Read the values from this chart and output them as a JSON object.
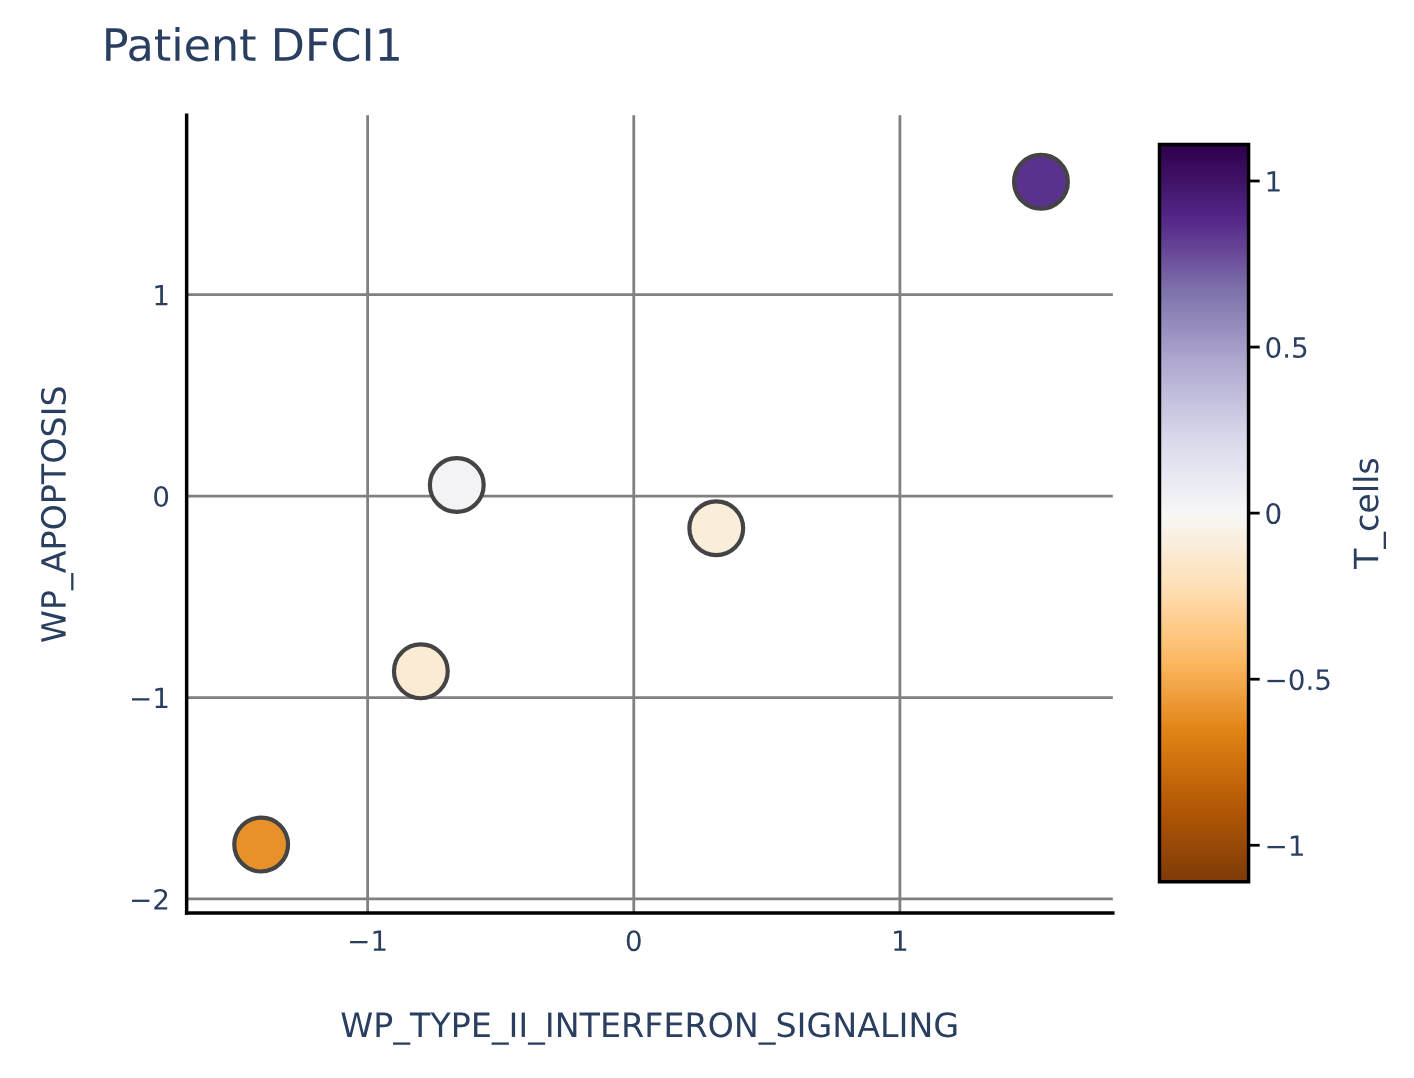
{
  "chart_data": {
    "type": "scatter",
    "title": "Patient DFCI1",
    "xlabel": "WP_TYPE_II_INTERFERON_SIGNALING",
    "ylabel": "WP_APOPTOSIS",
    "clabel": "T_cells",
    "x": [
      1.53,
      -0.665,
      0.31,
      -0.8,
      -1.4
    ],
    "values": [
      1.56,
      0.055,
      -0.16,
      -0.87,
      -1.73
    ],
    "cvalues": [
      0.85,
      0.03,
      -0.1,
      -0.12,
      -0.6
    ],
    "clim": [
      -1.11,
      1.11
    ],
    "cticks": [
      {
        "value": -1,
        "label": "−1"
      },
      {
        "value": -0.5,
        "label": "−0.5"
      },
      0,
      0.5,
      1
    ],
    "xlim": [
      -1.68,
      1.8
    ],
    "ylim": [
      -2.07,
      1.89
    ],
    "xticks": [
      {
        "value": -1,
        "label": "−1"
      },
      0,
      1
    ],
    "yticks": [
      {
        "value": -2,
        "label": "−2"
      },
      {
        "value": -1,
        "label": "−1"
      },
      0,
      1
    ],
    "grid": true,
    "marker": "circle"
  }
}
